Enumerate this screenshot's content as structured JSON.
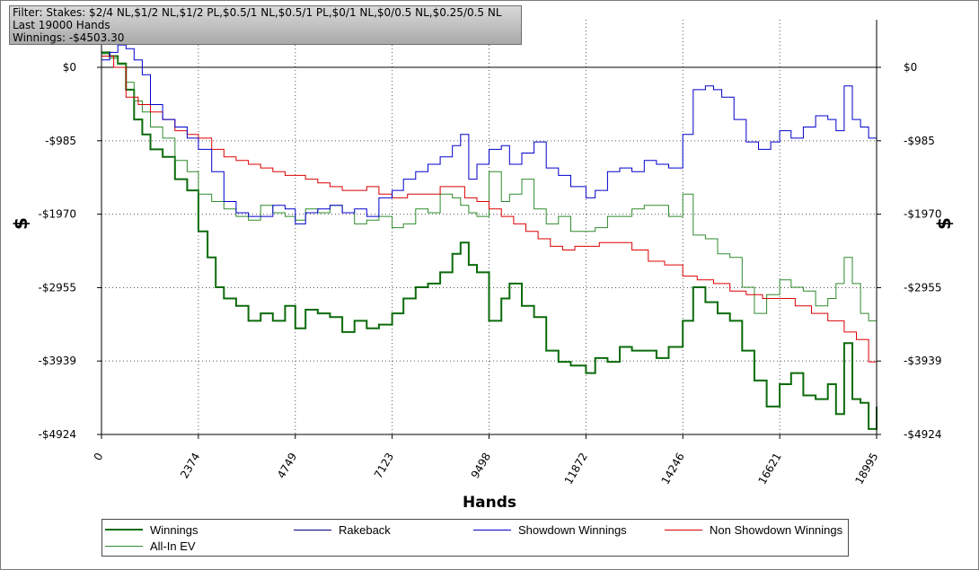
{
  "info": {
    "filter": "Filter: Stakes: $2/4 NL,$1/2 NL,$1/2 PL,$0.5/1 NL,$0.5/1 PL,$0/1 NL,$0/0.5 NL,$0.25/0.5 NL",
    "hands": "Last 19000 Hands",
    "winnings": "Winnings: -$4503.30"
  },
  "colors": {
    "Winnings": "#0b6b0b",
    "Rakeback": "#00008b",
    "Showdown Winnings": "#0000cc",
    "Non Showdown Winnings": "#dd0000",
    "All-In EV": "#2e8b2e"
  },
  "chart_data": {
    "type": "line",
    "xlabel": "Hands",
    "ylabel": "$",
    "x_ticks": [
      "0",
      "2374",
      "4749",
      "7123",
      "9498",
      "11872",
      "14246",
      "16621",
      "18995"
    ],
    "y_ticks": [
      "$0",
      "-$985",
      "-$1970",
      "-$2955",
      "-$3939",
      "-$4924"
    ],
    "xlim": [
      0,
      18995
    ],
    "ylim": [
      -4924,
      300
    ],
    "grid": true,
    "legend_position": "bottom",
    "legend": [
      "Winnings",
      "Rakeback",
      "Showdown Winnings",
      "Non Showdown Winnings",
      "All-In EV"
    ],
    "series": [
      {
        "name": "Winnings",
        "x": [
          0,
          200,
          400,
          600,
          800,
          1000,
          1200,
          1500,
          1800,
          2100,
          2374,
          2600,
          2800,
          3000,
          3300,
          3600,
          3900,
          4200,
          4500,
          4749,
          5000,
          5300,
          5600,
          5900,
          6200,
          6500,
          6800,
          7123,
          7400,
          7700,
          8000,
          8300,
          8600,
          8800,
          9000,
          9200,
          9498,
          9800,
          10000,
          10300,
          10600,
          10900,
          11200,
          11500,
          11872,
          12100,
          12400,
          12700,
          13000,
          13300,
          13600,
          13900,
          14246,
          14500,
          14800,
          15100,
          15400,
          15700,
          16000,
          16300,
          16621,
          16900,
          17200,
          17500,
          17800,
          18000,
          18200,
          18400,
          18600,
          18800,
          18995
        ],
        "y": [
          200,
          150,
          50,
          -300,
          -700,
          -900,
          -1100,
          -1200,
          -1500,
          -1650,
          -2200,
          -2550,
          -2950,
          -3100,
          -3200,
          -3400,
          -3300,
          -3400,
          -3200,
          -3500,
          -3250,
          -3300,
          -3350,
          -3550,
          -3400,
          -3500,
          -3450,
          -3300,
          -3100,
          -2950,
          -2900,
          -2750,
          -2500,
          -2350,
          -2650,
          -2750,
          -3400,
          -3100,
          -2900,
          -3200,
          -3350,
          -3800,
          -3950,
          -4000,
          -4100,
          -3900,
          -3950,
          -3750,
          -3800,
          -3800,
          -3900,
          -3750,
          -3400,
          -2950,
          -3150,
          -3300,
          -3400,
          -3800,
          -4200,
          -4550,
          -4250,
          -4100,
          -4400,
          -4450,
          -4250,
          -4650,
          -3700,
          -4450,
          -4500,
          -4850,
          -4550
        ]
      },
      {
        "name": "All-In EV",
        "x": [
          0,
          200,
          400,
          600,
          800,
          1000,
          1200,
          1500,
          1800,
          2100,
          2374,
          2700,
          3000,
          3300,
          3600,
          3900,
          4200,
          4500,
          4749,
          5000,
          5300,
          5600,
          5900,
          6200,
          6500,
          6800,
          7123,
          7400,
          7700,
          8000,
          8300,
          8600,
          8800,
          9000,
          9200,
          9498,
          9800,
          10000,
          10300,
          10600,
          10900,
          11200,
          11500,
          11872,
          12100,
          12400,
          12700,
          13000,
          13300,
          13600,
          13900,
          14246,
          14500,
          14800,
          15100,
          15400,
          15700,
          16000,
          16300,
          16621,
          16900,
          17200,
          17500,
          17800,
          18000,
          18200,
          18400,
          18600,
          18800,
          18995
        ],
        "y": [
          180,
          120,
          40,
          -200,
          -450,
          -600,
          -800,
          -950,
          -1250,
          -1400,
          -1700,
          -1800,
          -1900,
          -2000,
          -2050,
          -1850,
          -1950,
          -2000,
          -2050,
          -1900,
          -1950,
          -1850,
          -1950,
          -2100,
          -2050,
          -2000,
          -2150,
          -2100,
          -1900,
          -1950,
          -1700,
          -1750,
          -1850,
          -1950,
          -2000,
          -1400,
          -1800,
          -1700,
          -1500,
          -1900,
          -2100,
          -2000,
          -2200,
          -2200,
          -2150,
          -2000,
          -2000,
          -1900,
          -1850,
          -1850,
          -2000,
          -1700,
          -2250,
          -2300,
          -2500,
          -2550,
          -2950,
          -3300,
          -3050,
          -2850,
          -2950,
          -3000,
          -3200,
          -3100,
          -2900,
          -2550,
          -2900,
          -3300,
          -3400,
          -3350
        ]
      },
      {
        "name": "Non Showdown Winnings",
        "x": [
          0,
          300,
          600,
          900,
          1200,
          1500,
          1800,
          2100,
          2374,
          2700,
          3000,
          3300,
          3600,
          3900,
          4200,
          4500,
          4749,
          5000,
          5300,
          5600,
          5900,
          6200,
          6500,
          6800,
          7123,
          7500,
          7900,
          8300,
          8600,
          8900,
          9200,
          9498,
          9800,
          10100,
          10400,
          10700,
          11000,
          11300,
          11600,
          11872,
          12200,
          12600,
          13000,
          13400,
          13800,
          14246,
          14600,
          15000,
          15400,
          15800,
          16200,
          16621,
          17000,
          17400,
          17800,
          18200,
          18500,
          18800,
          18995
        ],
        "y": [
          150,
          0,
          -400,
          -500,
          -600,
          -700,
          -850,
          -900,
          -950,
          -1100,
          -1200,
          -1250,
          -1300,
          -1350,
          -1400,
          -1450,
          -1450,
          -1500,
          -1550,
          -1600,
          -1650,
          -1650,
          -1600,
          -1700,
          -1750,
          -1700,
          -1700,
          -1600,
          -1600,
          -1750,
          -1800,
          -1900,
          -2000,
          -2100,
          -2200,
          -2300,
          -2400,
          -2450,
          -2400,
          -2400,
          -2350,
          -2350,
          -2450,
          -2600,
          -2650,
          -2800,
          -2850,
          -2900,
          -3000,
          -3050,
          -3100,
          -3100,
          -3200,
          -3300,
          -3400,
          -3550,
          -3650,
          -3950,
          -3850
        ]
      },
      {
        "name": "Showdown Winnings",
        "x": [
          0,
          200,
          400,
          600,
          800,
          1000,
          1200,
          1500,
          1800,
          2100,
          2374,
          2700,
          3000,
          3300,
          3600,
          3900,
          4200,
          4500,
          4749,
          5000,
          5300,
          5600,
          5900,
          6200,
          6500,
          6800,
          7123,
          7400,
          7700,
          8000,
          8300,
          8600,
          8800,
          9000,
          9200,
          9498,
          9800,
          10000,
          10300,
          10600,
          10900,
          11200,
          11500,
          11872,
          12100,
          12400,
          12700,
          13000,
          13300,
          13600,
          13900,
          14246,
          14500,
          14800,
          15000,
          15200,
          15500,
          15800,
          16100,
          16400,
          16621,
          16900,
          17200,
          17500,
          17800,
          18000,
          18200,
          18400,
          18600,
          18800,
          18995
        ],
        "y": [
          100,
          200,
          300,
          250,
          100,
          -100,
          -500,
          -700,
          -800,
          -950,
          -1100,
          -1400,
          -1800,
          -1950,
          -2000,
          -2000,
          -1850,
          -1900,
          -2100,
          -1950,
          -1900,
          -1850,
          -1950,
          -1900,
          -2000,
          -1750,
          -1650,
          -1500,
          -1400,
          -1300,
          -1200,
          -1050,
          -900,
          -1500,
          -1300,
          -1100,
          -1050,
          -1300,
          -1150,
          -1000,
          -1350,
          -1450,
          -1600,
          -1750,
          -1650,
          -1400,
          -1350,
          -1400,
          -1250,
          -1300,
          -1350,
          -900,
          -300,
          -250,
          -300,
          -400,
          -700,
          -1000,
          -1100,
          -1000,
          -850,
          -950,
          -800,
          -650,
          -700,
          -850,
          -250,
          -700,
          -800,
          -950,
          -700
        ]
      }
    ]
  }
}
